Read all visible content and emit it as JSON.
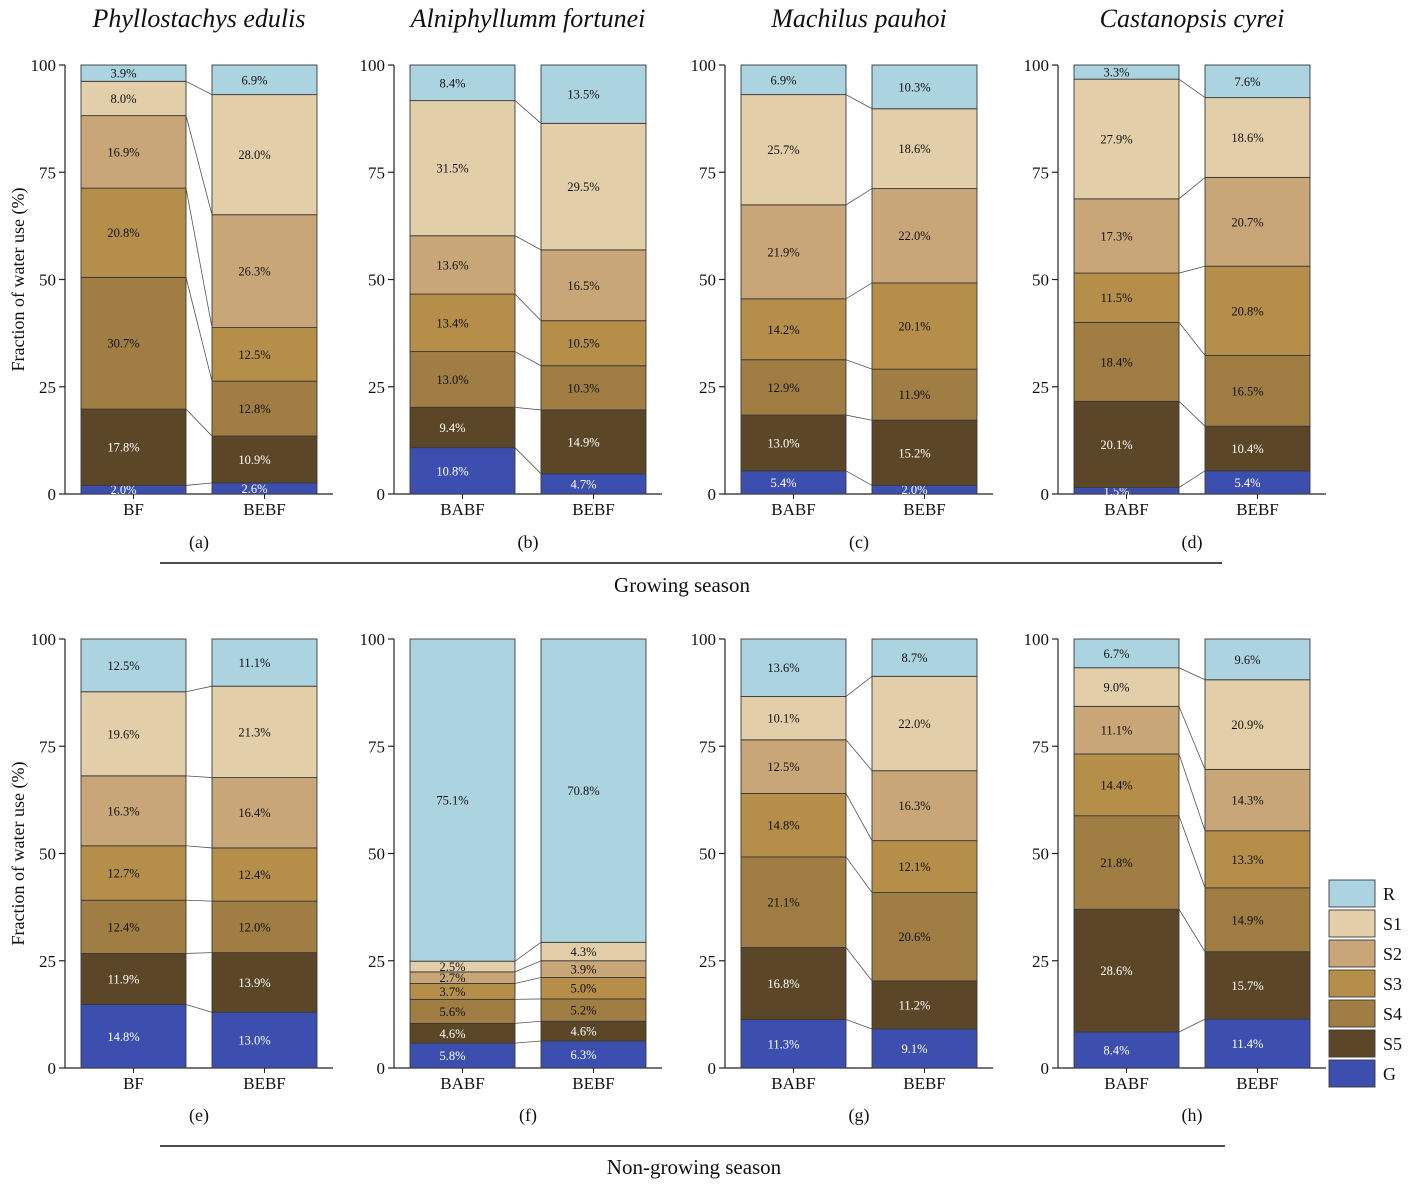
{
  "chart_data": {
    "type": "bar",
    "stacked": true,
    "ylabel": "Fraction of water use (%)",
    "ylim": [
      0,
      100
    ],
    "yticks": [
      0,
      25,
      50,
      75,
      100
    ],
    "sources": [
      "G",
      "S5",
      "S4",
      "S3",
      "S2",
      "S1",
      "R"
    ],
    "colors": {
      "G": "#3d4fae",
      "S5": "#5b4727",
      "S4": "#a07d43",
      "S3": "#b58e4a",
      "S2": "#c9a677",
      "S1": "#e2cfaa",
      "R": "#acd4e0"
    },
    "legend": {
      "position": "right",
      "items": [
        "R",
        "S1",
        "S2",
        "S3",
        "S4",
        "S5",
        "G"
      ]
    },
    "seasons": [
      "Growing season",
      "Non-growing season"
    ],
    "species": [
      "Phyllostachys edulis",
      "Alniphyllumm fortunei",
      "Machilus pauhoi",
      "Castanopsis cyrei"
    ],
    "panels": [
      {
        "letter": "(a)",
        "title": "Phyllostachys edulis",
        "season": 0,
        "bars": [
          {
            "category": "BF",
            "values": [
              2.0,
              17.8,
              30.7,
              20.8,
              16.9,
              8.0,
              3.9
            ],
            "labels": [
              "2.0%",
              "17.8%",
              "30.7%",
              "20.8%",
              "16.9%",
              "8.0%",
              "3.9%"
            ]
          },
          {
            "category": "BEBF",
            "values": [
              2.6,
              10.9,
              12.8,
              12.5,
              26.3,
              28.0,
              6.9
            ],
            "labels": [
              "2.6%",
              "10.9%",
              "12.8%",
              "12.5%",
              "26.3%",
              "28.0%",
              "6.9%"
            ]
          }
        ]
      },
      {
        "letter": "(b)",
        "title": "Alniphyllumm fortunei",
        "season": 0,
        "bars": [
          {
            "category": "BABF",
            "values": [
              10.8,
              9.4,
              13.0,
              13.4,
              13.6,
              31.5,
              8.4
            ],
            "labels": [
              "10.8%",
              "9.4%",
              "13.0%",
              "13.4%",
              "13.6%",
              "31.5%",
              "8.4%"
            ]
          },
          {
            "category": "BEBF",
            "values": [
              4.7,
              14.9,
              10.3,
              10.5,
              16.5,
              29.5,
              13.5
            ],
            "labels": [
              "4.7%",
              "14.9%",
              "10.3%",
              "10.5%",
              "16.5%",
              "29.5%",
              "13.5%"
            ]
          }
        ]
      },
      {
        "letter": "(c)",
        "title": "Machilus pauhoi",
        "season": 0,
        "bars": [
          {
            "category": "BABF",
            "values": [
              5.4,
              13.0,
              12.9,
              14.2,
              21.9,
              25.7,
              6.9
            ],
            "labels": [
              "5.4%",
              "13.0%",
              "12.9%",
              "14.2%",
              "21.9%",
              "25.7%",
              "6.9%"
            ]
          },
          {
            "category": "BEBF",
            "values": [
              2.0,
              15.2,
              11.9,
              20.1,
              22.0,
              18.6,
              10.3
            ],
            "labels": [
              "2.0%",
              "15.2%",
              "11.9%",
              "20.1%",
              "22.0%",
              "18.6%",
              "10.3%"
            ]
          }
        ]
      },
      {
        "letter": "(d)",
        "title": "Castanopsis cyrei",
        "season": 0,
        "bars": [
          {
            "category": "BABF",
            "values": [
              1.5,
              20.1,
              18.4,
              11.5,
              17.3,
              27.9,
              3.3
            ],
            "labels": [
              "1.5%",
              "20.1%",
              "18.4%",
              "11.5%",
              "17.3%",
              "27.9%",
              "3.3%"
            ]
          },
          {
            "category": "BEBF",
            "values": [
              5.4,
              10.4,
              16.5,
              20.8,
              20.7,
              18.6,
              7.6
            ],
            "labels": [
              "5.4%",
              "10.4%",
              "16.5%",
              "20.8%",
              "20.7%",
              "18.6%",
              "7.6%"
            ]
          }
        ]
      },
      {
        "letter": "(e)",
        "title": "",
        "season": 1,
        "bars": [
          {
            "category": "BF",
            "values": [
              14.8,
              11.9,
              12.4,
              12.7,
              16.3,
              19.6,
              12.5
            ],
            "labels": [
              "14.8%",
              "11.9%",
              "12.4%",
              "12.7%",
              "16.3%",
              "19.6%",
              "12.5%"
            ]
          },
          {
            "category": "BEBF",
            "values": [
              13.0,
              13.9,
              12.0,
              12.4,
              16.4,
              21.3,
              11.1
            ],
            "labels": [
              "13.0%",
              "13.9%",
              "12.0%",
              "12.4%",
              "16.4%",
              "21.3%",
              "11.1%"
            ]
          }
        ]
      },
      {
        "letter": "(f)",
        "title": "",
        "season": 1,
        "bars": [
          {
            "category": "BABF",
            "values": [
              5.8,
              4.6,
              5.6,
              3.7,
              2.7,
              2.5,
              75.1
            ],
            "labels": [
              "5.8%",
              "4.6%",
              "5.6%",
              "3.7%",
              "2.7%",
              "2.5%",
              "75.1%"
            ]
          },
          {
            "category": "BEBF",
            "values": [
              6.3,
              4.6,
              5.2,
              5.0,
              3.9,
              4.3,
              70.8
            ],
            "labels": [
              "6.3%",
              "4.6%",
              "5.2%",
              "5.0%",
              "3.9%",
              "4.3%",
              "70.8%"
            ]
          }
        ]
      },
      {
        "letter": "(g)",
        "title": "",
        "season": 1,
        "bars": [
          {
            "category": "BABF",
            "values": [
              11.3,
              16.8,
              21.1,
              14.8,
              12.5,
              10.1,
              13.6
            ],
            "labels": [
              "11.3%",
              "16.8%",
              "21.1%",
              "14.8%",
              "12.5%",
              "10.1%",
              "13.6%"
            ]
          },
          {
            "category": "BEBF",
            "values": [
              9.1,
              11.2,
              20.6,
              12.1,
              16.3,
              22.0,
              8.7
            ],
            "labels": [
              "9.1%",
              "11.2%",
              "20.6%",
              "12.1%",
              "16.3%",
              "22.0%",
              "8.7%"
            ]
          }
        ]
      },
      {
        "letter": "(h)",
        "title": "",
        "season": 1,
        "bars": [
          {
            "category": "BABF",
            "values": [
              8.4,
              28.6,
              21.8,
              14.4,
              11.1,
              9.0,
              6.7
            ],
            "labels": [
              "8.4%",
              "28.6%",
              "21.8%",
              "14.4%",
              "11.1%",
              "9.0%",
              "6.7%"
            ]
          },
          {
            "category": "BEBF",
            "values": [
              11.4,
              15.7,
              14.9,
              13.3,
              14.3,
              20.9,
              9.6
            ],
            "labels": [
              "11.4%",
              "15.7%",
              "14.9%",
              "13.3%",
              "14.3%",
              "20.9%",
              "9.6%"
            ]
          }
        ]
      }
    ]
  }
}
